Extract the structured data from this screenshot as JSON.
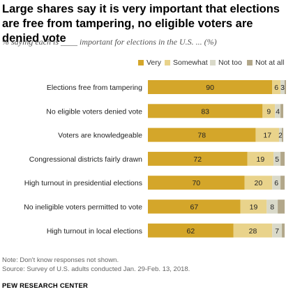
{
  "header": {
    "title": "Large shares say it is very important that elections are free from tampering, no eligible voters are denied vote",
    "subtitle": "% saying each is ____ important for elections in the U.S. ... (%)"
  },
  "footer": {
    "note": "Note: Don't know responses not shown.",
    "source": "Source: Survey of U.S. adults conducted Jan. 29-Feb. 13, 2018.",
    "organization": "PEW RESEARCH CENTER"
  },
  "colors": {
    "very": "#d4a62a",
    "somewhat": "#e9d38b",
    "not_too": "#d9d9c9",
    "not_at_all": "#b2a78a"
  },
  "chart_data": {
    "type": "bar",
    "orientation": "horizontal",
    "stacked": true,
    "xlim": [
      0,
      100
    ],
    "categories": [
      "Elections free from tampering",
      "No eligible voters denied vote",
      "Voters are knowledgeable",
      "Congressional districts fairly drawn",
      "High turnout in presidential elections",
      "No ineligible voters permitted to vote",
      "High turnout in local elections"
    ],
    "series": [
      {
        "name": "Very",
        "values": [
          90,
          83,
          78,
          72,
          70,
          67,
          62
        ],
        "labels": [
          "90",
          "83",
          "78",
          "72",
          "70",
          "67",
          "62"
        ]
      },
      {
        "name": "Somewhat",
        "values": [
          6,
          9,
          17,
          19,
          20,
          19,
          28
        ],
        "labels": [
          "6",
          "9",
          "17",
          "19",
          "20",
          "19",
          "28"
        ]
      },
      {
        "name": "Not too",
        "values": [
          3,
          4,
          2,
          5,
          6,
          8,
          7
        ],
        "labels": [
          "3",
          "4",
          "2",
          "5",
          "6",
          "8",
          "7"
        ]
      },
      {
        "name": "Not at all",
        "values": [
          1,
          2,
          1,
          3,
          3,
          5,
          2
        ],
        "labels": [
          "",
          "",
          "",
          "",
          "",
          "",
          ""
        ]
      }
    ],
    "legend_position": "top-right",
    "grid": false
  }
}
